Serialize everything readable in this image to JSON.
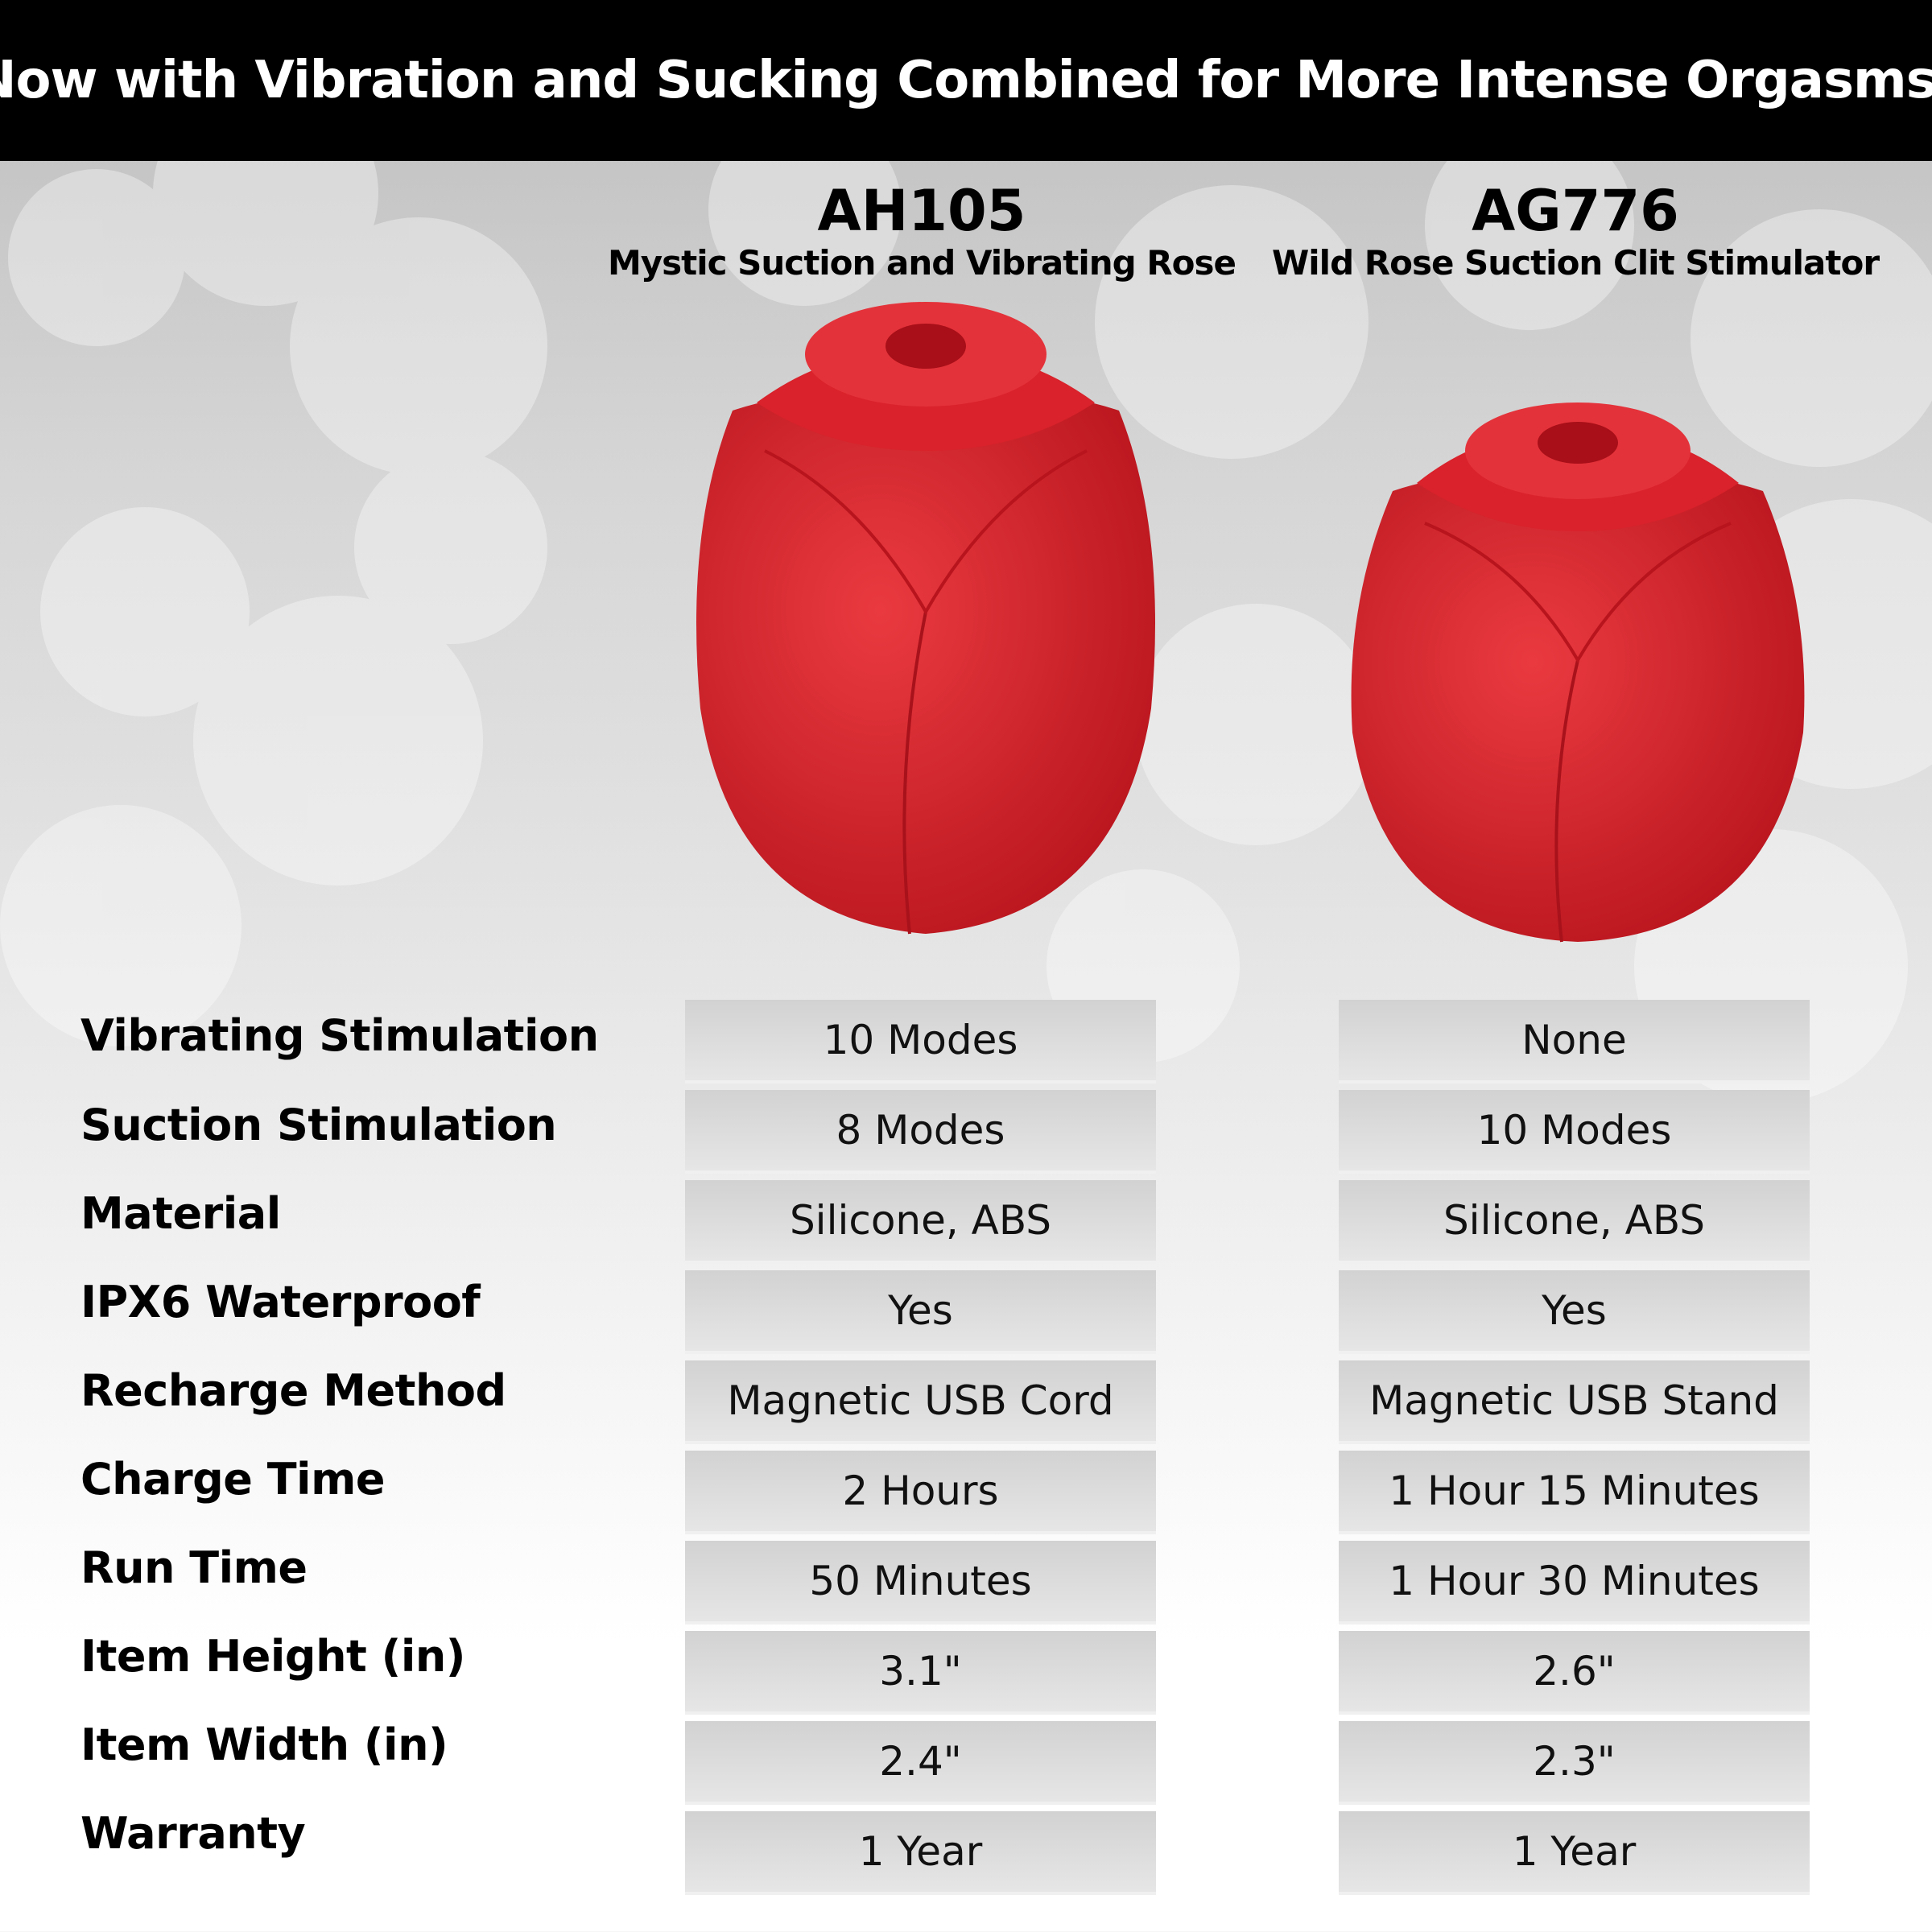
{
  "header": {
    "title": "Now with Vibration and Sucking Combined for More Intense Orgasms!"
  },
  "products": [
    {
      "code": "AH105",
      "name": "Mystic Suction and Vibrating Rose"
    },
    {
      "code": "AG776",
      "name": "Wild Rose Suction Clit Stimulator"
    }
  ],
  "colors": {
    "rose": "#e0262f",
    "header_bg": "#000000"
  },
  "rows": [
    {
      "label": "Vibrating Stimulation",
      "values": [
        "10 Modes",
        "None"
      ]
    },
    {
      "label": "Suction Stimulation",
      "values": [
        "8 Modes",
        "10 Modes"
      ]
    },
    {
      "label": "Material",
      "values": [
        "Silicone, ABS",
        "Silicone, ABS"
      ]
    },
    {
      "label": "IPX6 Waterproof",
      "values": [
        "Yes",
        "Yes"
      ]
    },
    {
      "label": "Recharge Method",
      "values": [
        "Magnetic USB Cord",
        "Magnetic USB Stand"
      ]
    },
    {
      "label": "Charge Time",
      "values": [
        "2 Hours",
        "1 Hour 15 Minutes"
      ]
    },
    {
      "label": "Run Time",
      "values": [
        "50 Minutes",
        "1 Hour 30 Minutes"
      ]
    },
    {
      "label": "Item Height (in)",
      "values": [
        "3.1\"",
        "2.6\""
      ]
    },
    {
      "label": "Item Width (in)",
      "values": [
        "2.4\"",
        "2.3\""
      ]
    },
    {
      "label": "Warranty",
      "values": [
        "1 Year",
        "1 Year"
      ]
    }
  ]
}
